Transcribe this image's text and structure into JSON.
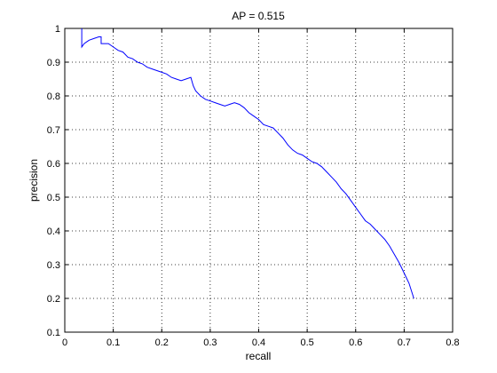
{
  "chart_data": {
    "type": "line",
    "title": "AP = 0.515",
    "xlabel": "recall",
    "ylabel": "precision",
    "xlim": [
      0,
      0.8
    ],
    "ylim": [
      0.1,
      1
    ],
    "xticks": [
      "0",
      "0.1",
      "0.2",
      "0.3",
      "0.4",
      "0.5",
      "0.6",
      "0.7",
      "0.8"
    ],
    "yticks": [
      "0.1",
      "0.2",
      "0.3",
      "0.4",
      "0.5",
      "0.6",
      "0.7",
      "0.8",
      "0.9",
      "1"
    ],
    "grid": true,
    "line_color": "#0000ff",
    "series": [
      {
        "x": [
          0.035,
          0.035,
          0.04,
          0.045,
          0.05,
          0.06,
          0.07,
          0.075,
          0.075,
          0.09,
          0.1,
          0.11,
          0.12,
          0.13,
          0.14,
          0.15,
          0.16,
          0.17,
          0.18,
          0.19,
          0.2,
          0.21,
          0.22,
          0.23,
          0.24,
          0.25,
          0.26,
          0.265,
          0.27,
          0.28,
          0.29,
          0.3,
          0.31,
          0.32,
          0.33,
          0.34,
          0.35,
          0.36,
          0.37,
          0.38,
          0.39,
          0.4,
          0.41,
          0.42,
          0.43,
          0.44,
          0.45,
          0.46,
          0.47,
          0.48,
          0.49,
          0.5,
          0.51,
          0.52,
          0.53,
          0.54,
          0.55,
          0.56,
          0.57,
          0.58,
          0.59,
          0.6,
          0.61,
          0.62,
          0.63,
          0.64,
          0.65,
          0.66,
          0.67,
          0.68,
          0.69,
          0.7,
          0.71,
          0.72
        ],
        "y": [
          1.0,
          0.945,
          0.955,
          0.96,
          0.965,
          0.97,
          0.975,
          0.975,
          0.955,
          0.955,
          0.945,
          0.935,
          0.93,
          0.915,
          0.91,
          0.9,
          0.895,
          0.885,
          0.88,
          0.875,
          0.87,
          0.865,
          0.855,
          0.85,
          0.845,
          0.85,
          0.855,
          0.83,
          0.815,
          0.8,
          0.79,
          0.785,
          0.78,
          0.775,
          0.77,
          0.775,
          0.78,
          0.775,
          0.765,
          0.75,
          0.74,
          0.73,
          0.715,
          0.71,
          0.705,
          0.69,
          0.675,
          0.655,
          0.64,
          0.63,
          0.625,
          0.615,
          0.605,
          0.6,
          0.59,
          0.575,
          0.56,
          0.545,
          0.525,
          0.51,
          0.49,
          0.47,
          0.45,
          0.43,
          0.42,
          0.405,
          0.39,
          0.375,
          0.355,
          0.33,
          0.305,
          0.275,
          0.245,
          0.2
        ]
      }
    ]
  }
}
